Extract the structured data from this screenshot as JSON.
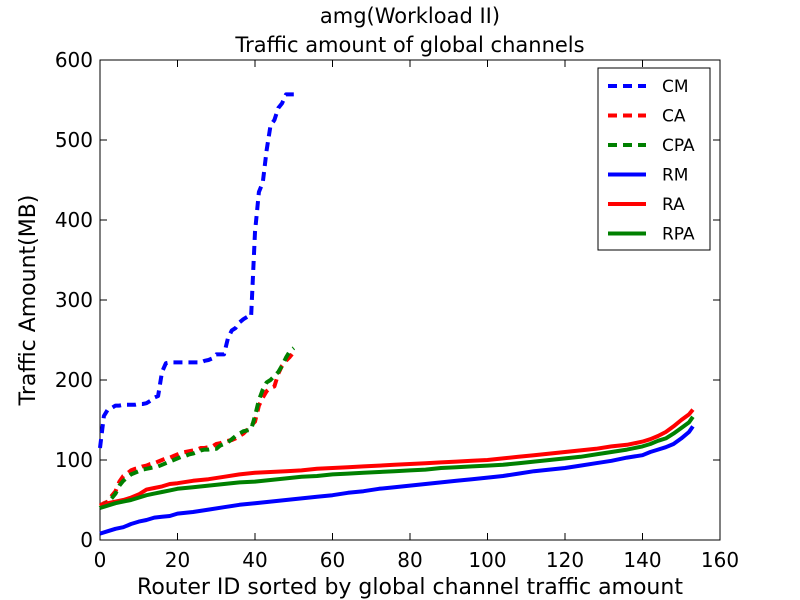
{
  "chart_data": {
    "type": "line",
    "title": "amg(Workload II)",
    "subtitle": "Traffic amount of global channels",
    "xlabel": "Router ID sorted by global channel traffic amount",
    "ylabel": "Traffic Amount(MB)",
    "xlim": [
      0,
      160
    ],
    "ylim": [
      0,
      600
    ],
    "xticks": [
      0,
      20,
      40,
      60,
      80,
      100,
      120,
      140,
      160
    ],
    "yticks": [
      0,
      100,
      200,
      300,
      400,
      500,
      600
    ],
    "grid": false,
    "legend_position": "top-right",
    "series": [
      {
        "name": "CM",
        "color": "#0000ff",
        "style": "dashed",
        "x": [
          0,
          1,
          2,
          3,
          4,
          5,
          6,
          7,
          8,
          9,
          10,
          11,
          12,
          13,
          14,
          15,
          16,
          17,
          18,
          19,
          20,
          21,
          22,
          23,
          24,
          25,
          26,
          27,
          28,
          29,
          30,
          31,
          32,
          33,
          34,
          35,
          36,
          37,
          38,
          39,
          40,
          41,
          42,
          43,
          44,
          45,
          46,
          47,
          48,
          49,
          50
        ],
        "y": [
          115,
          155,
          163,
          165,
          168,
          168,
          169,
          169,
          169,
          169,
          170,
          170,
          171,
          174,
          178,
          180,
          210,
          221,
          222,
          222,
          222,
          222,
          222,
          222,
          222,
          222,
          222,
          224,
          225,
          227,
          232,
          232,
          232,
          252,
          262,
          265,
          272,
          276,
          279,
          279,
          385,
          435,
          447,
          487,
          518,
          525,
          540,
          546,
          557,
          557,
          557
        ]
      },
      {
        "name": "CA",
        "color": "#ff0000",
        "style": "dashed",
        "x": [
          0,
          1,
          2,
          3,
          4,
          5,
          6,
          7,
          8,
          9,
          10,
          11,
          12,
          13,
          14,
          15,
          16,
          17,
          18,
          19,
          20,
          21,
          22,
          23,
          24,
          25,
          26,
          27,
          28,
          29,
          30,
          31,
          32,
          33,
          34,
          35,
          36,
          37,
          38,
          39,
          40,
          41,
          42,
          43,
          44,
          45,
          46,
          47,
          48,
          49,
          50
        ],
        "y": [
          43,
          46,
          48,
          55,
          61,
          73,
          80,
          83,
          87,
          89,
          90,
          92,
          93,
          95,
          96,
          98,
          100,
          102,
          103,
          105,
          107,
          109,
          110,
          111,
          112,
          113,
          115,
          115,
          116,
          117,
          120,
          121,
          123,
          124,
          125,
          127,
          130,
          133,
          138,
          143,
          148,
          168,
          178,
          186,
          190,
          192,
          208,
          218,
          224,
          229,
          235
        ]
      },
      {
        "name": "CPA",
        "color": "#008000",
        "style": "dashed",
        "x": [
          0,
          1,
          2,
          3,
          4,
          5,
          6,
          7,
          8,
          9,
          10,
          11,
          12,
          13,
          14,
          15,
          16,
          17,
          18,
          19,
          20,
          21,
          22,
          23,
          24,
          25,
          26,
          27,
          28,
          29,
          30,
          31,
          32,
          33,
          34,
          35,
          36,
          37,
          38,
          39,
          40,
          41,
          42,
          43,
          44,
          45,
          46,
          47,
          48,
          49,
          50
        ],
        "y": [
          40,
          44,
          47,
          52,
          58,
          68,
          74,
          78,
          82,
          84,
          86,
          88,
          89,
          90,
          91,
          92,
          94,
          96,
          98,
          100,
          102,
          104,
          105,
          107,
          108,
          110,
          112,
          113,
          113,
          114,
          114,
          118,
          120,
          122,
          126,
          130,
          133,
          136,
          137,
          138,
          155,
          175,
          188,
          197,
          200,
          205,
          210,
          218,
          228,
          236,
          240
        ]
      },
      {
        "name": "RM",
        "color": "#0000ff",
        "style": "solid",
        "x": [
          0,
          2,
          4,
          6,
          8,
          10,
          12,
          14,
          16,
          18,
          20,
          24,
          28,
          32,
          36,
          40,
          44,
          48,
          52,
          56,
          60,
          64,
          68,
          72,
          76,
          80,
          84,
          88,
          92,
          96,
          100,
          104,
          108,
          112,
          116,
          120,
          124,
          128,
          132,
          136,
          140,
          142,
          144,
          146,
          148,
          150,
          152,
          153
        ],
        "y": [
          8,
          11,
          14,
          16,
          20,
          23,
          25,
          28,
          29,
          30,
          33,
          35,
          38,
          41,
          44,
          46,
          48,
          50,
          52,
          54,
          56,
          59,
          61,
          64,
          66,
          68,
          70,
          72,
          74,
          76,
          78,
          80,
          83,
          86,
          88,
          90,
          93,
          96,
          99,
          103,
          106,
          110,
          113,
          116,
          120,
          127,
          135,
          142
        ]
      },
      {
        "name": "RA",
        "color": "#ff0000",
        "style": "solid",
        "x": [
          0,
          2,
          4,
          6,
          8,
          10,
          12,
          14,
          16,
          18,
          20,
          24,
          28,
          32,
          36,
          40,
          44,
          48,
          52,
          56,
          60,
          64,
          68,
          72,
          76,
          80,
          84,
          88,
          92,
          96,
          100,
          104,
          108,
          112,
          116,
          120,
          124,
          128,
          132,
          136,
          140,
          142,
          144,
          146,
          148,
          150,
          152,
          153
        ],
        "y": [
          42,
          46,
          48,
          50,
          53,
          57,
          63,
          65,
          67,
          70,
          71,
          74,
          76,
          79,
          82,
          84,
          85,
          86,
          87,
          89,
          90,
          91,
          92,
          93,
          94,
          95,
          96,
          97,
          98,
          99,
          100,
          102,
          104,
          106,
          108,
          110,
          112,
          114,
          117,
          119,
          123,
          126,
          130,
          135,
          142,
          150,
          157,
          163
        ]
      },
      {
        "name": "RPA",
        "color": "#008000",
        "style": "solid",
        "x": [
          0,
          2,
          4,
          6,
          8,
          10,
          12,
          14,
          16,
          18,
          20,
          24,
          28,
          32,
          36,
          40,
          44,
          48,
          52,
          56,
          60,
          64,
          68,
          72,
          76,
          80,
          84,
          88,
          92,
          96,
          100,
          104,
          108,
          112,
          116,
          120,
          124,
          128,
          132,
          136,
          140,
          142,
          144,
          146,
          148,
          150,
          152,
          153
        ],
        "y": [
          40,
          43,
          46,
          48,
          50,
          53,
          56,
          58,
          60,
          62,
          64,
          66,
          68,
          70,
          72,
          73,
          75,
          77,
          79,
          80,
          82,
          83,
          84,
          85,
          86,
          87,
          88,
          90,
          91,
          92,
          93,
          94,
          96,
          98,
          100,
          102,
          104,
          107,
          110,
          113,
          117,
          120,
          124,
          127,
          133,
          140,
          147,
          154
        ]
      }
    ]
  }
}
